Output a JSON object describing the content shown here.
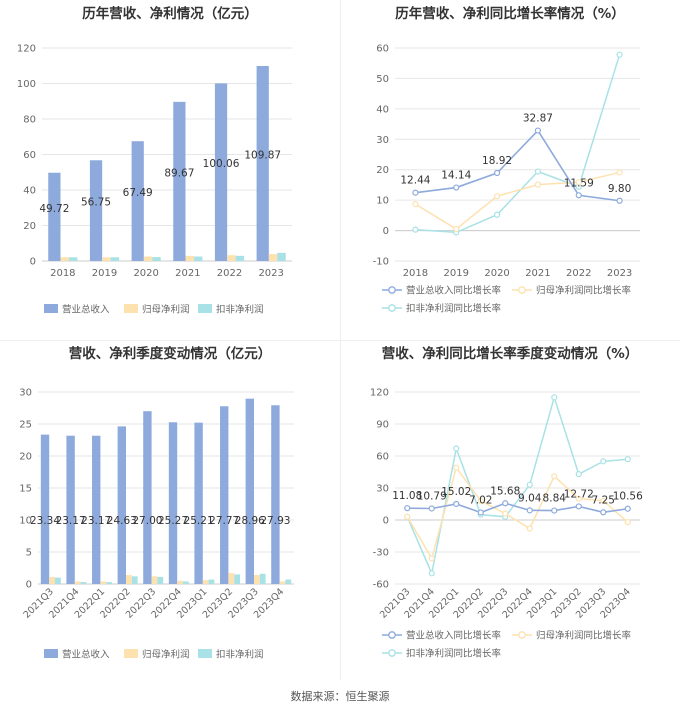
{
  "source": "数据来源：恒生聚源",
  "colors": {
    "revenue": "#8eaadc",
    "net_profit": "#fde2b0",
    "deducted_profit": "#a8e2e6",
    "axis": "#999999",
    "grid": "#e6e6e6",
    "text": "#333333",
    "label": "#666666"
  },
  "chart_data": [
    {
      "type": "bar",
      "title": "历年营收、净利情况（亿元）",
      "categories": [
        "2018",
        "2019",
        "2020",
        "2021",
        "2022",
        "2023"
      ],
      "ylim": [
        0,
        120
      ],
      "yticks": [
        0,
        20,
        40,
        60,
        80,
        100,
        120
      ],
      "series": [
        {
          "name": "营业总收入",
          "values": [
            49.72,
            56.75,
            67.49,
            89.67,
            100.06,
            109.87
          ],
          "labels": [
            "49.72",
            "56.75",
            "67.49",
            "89.67",
            "100.06",
            "109.87"
          ]
        },
        {
          "name": "归母净利润",
          "values": [
            2.1,
            2.1,
            2.5,
            2.9,
            3.3,
            3.9
          ]
        },
        {
          "name": "扣非净利润",
          "values": [
            2.1,
            2.1,
            2.2,
            2.5,
            2.9,
            4.6
          ]
        }
      ]
    },
    {
      "type": "line",
      "title": "历年营收、净利同比增长率情况（%）",
      "categories": [
        "2018",
        "2019",
        "2020",
        "2021",
        "2022",
        "2023"
      ],
      "ylim": [
        -10,
        60
      ],
      "yticks": [
        -10,
        0,
        10,
        20,
        30,
        40,
        50,
        60
      ],
      "series": [
        {
          "name": "营业总收入同比增长率",
          "values": [
            12.44,
            14.14,
            18.92,
            32.87,
            11.59,
            9.8
          ],
          "labels": [
            "12.44",
            "14.14",
            "18.92",
            "32.87",
            "11.59",
            "9.80"
          ]
        },
        {
          "name": "归母净利润同比增长率",
          "values": [
            8.7,
            0.5,
            11.3,
            15.1,
            15.9,
            19.1
          ]
        },
        {
          "name": "扣非净利润同比增长率",
          "values": [
            0.3,
            -0.6,
            5.2,
            19.4,
            14.4,
            57.8
          ]
        }
      ]
    },
    {
      "type": "bar",
      "title": "营收、净利季度变动情况（亿元）",
      "categories": [
        "2021Q3",
        "2021Q4",
        "2022Q1",
        "2022Q2",
        "2022Q3",
        "2022Q4",
        "2023Q1",
        "2023Q2",
        "2023Q3",
        "2023Q4"
      ],
      "ylim": [
        0,
        30
      ],
      "yticks": [
        0,
        5,
        10,
        15,
        20,
        25,
        30
      ],
      "series": [
        {
          "name": "营业总收入",
          "values": [
            23.34,
            23.17,
            23.17,
            24.63,
            27.0,
            25.27,
            25.21,
            27.77,
            28.96,
            27.93
          ],
          "labels": [
            "23.34",
            "23.17",
            "23.17",
            "24.63",
            "27.00",
            "25.27",
            "25.21",
            "27.77",
            "28.96",
            "27.93"
          ]
        },
        {
          "name": "归母净利润",
          "values": [
            1.1,
            0.4,
            0.4,
            1.4,
            1.2,
            0.5,
            0.6,
            1.7,
            1.4,
            0.4
          ]
        },
        {
          "name": "扣非净利润",
          "values": [
            1.0,
            0.3,
            0.3,
            1.2,
            1.1,
            0.4,
            0.7,
            1.5,
            1.6,
            0.7
          ]
        }
      ]
    },
    {
      "type": "line",
      "title": "营收、净利同比增长率季度变动情况（%）",
      "categories": [
        "2021Q3",
        "2021Q4",
        "2022Q1",
        "2022Q2",
        "2022Q3",
        "2022Q4",
        "2023Q1",
        "2023Q2",
        "2023Q3",
        "2023Q4"
      ],
      "ylim": [
        -60,
        120
      ],
      "yticks": [
        -60,
        -30,
        0,
        30,
        60,
        90,
        120
      ],
      "series": [
        {
          "name": "营业总收入同比增长率",
          "values": [
            11.08,
            10.79,
            15.02,
            7.02,
            15.68,
            9.04,
            8.84,
            12.72,
            7.25,
            10.56
          ],
          "labels": [
            "11.08",
            "10.79",
            "15.02",
            "7.02",
            "15.68",
            "9.04",
            "8.84",
            "12.72",
            "7.25",
            "10.56"
          ]
        },
        {
          "name": "归母净利润同比增长率",
          "values": [
            3,
            -36,
            49,
            18,
            6,
            -8,
            41,
            20,
            18,
            -2
          ]
        },
        {
          "name": "扣非净利润同比增长率",
          "values": [
            3,
            -50,
            67,
            5,
            3,
            33,
            115,
            43,
            55,
            57
          ]
        }
      ]
    }
  ]
}
